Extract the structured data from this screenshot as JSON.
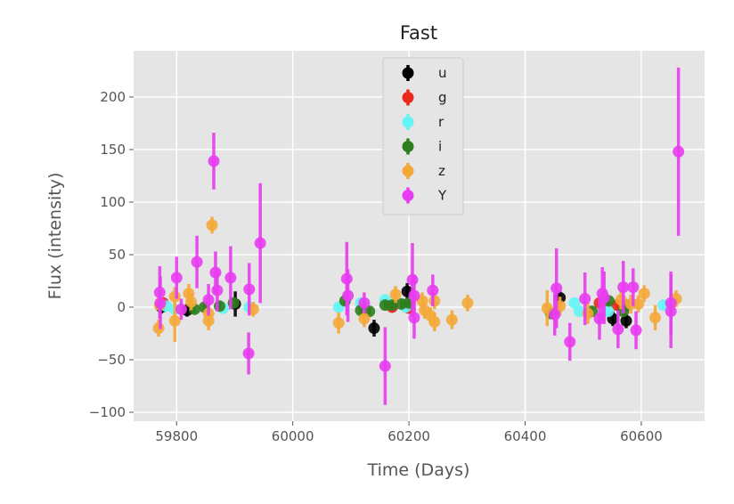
{
  "chart_data": {
    "type": "scatter",
    "title": "Fast",
    "xlabel": "Time (Days)",
    "ylabel": "Flux (intensity)",
    "xlim": [
      59726,
      60709
    ],
    "ylim": [
      -108.5,
      244
    ],
    "xticks": [
      59800,
      60000,
      60200,
      60400,
      60600
    ],
    "yticks": [
      -100,
      -50,
      0,
      50,
      100,
      150,
      200
    ],
    "grid": true,
    "error_bars": true,
    "legend_position": "top-center",
    "series": [
      {
        "name": "u",
        "color": "#000000",
        "x": [
          59774,
          59818,
          59901,
          60140,
          60197,
          60460,
          60551,
          60574
        ],
        "y": [
          0,
          -3,
          3,
          -20,
          15,
          9,
          -11,
          -13
        ],
        "err": [
          6,
          6,
          12,
          8,
          8,
          6,
          7,
          7
        ]
      },
      {
        "name": "g",
        "color": "#e8291c",
        "x": [
          59777,
          60171,
          60200,
          60528,
          60558
        ],
        "y": [
          4,
          0,
          -1,
          4,
          2
        ],
        "err": [
          5,
          5,
          5,
          5,
          5
        ]
      },
      {
        "name": "r",
        "color": "#66f5f5",
        "x": [
          59782,
          59797,
          59880,
          59925,
          60079,
          60117,
          60159,
          60194,
          60485,
          60493,
          60543,
          60638
        ],
        "y": [
          1,
          -2,
          -1,
          0,
          0,
          4,
          7,
          0,
          4,
          -4,
          -4,
          2
        ],
        "err": [
          4,
          4,
          4,
          4,
          4,
          4,
          4,
          4,
          4,
          4,
          4,
          4
        ]
      },
      {
        "name": "i",
        "color": "#2e7d1e",
        "x": [
          59831,
          59848,
          59874,
          59898,
          60090,
          60117,
          60132,
          60159,
          60171,
          60187,
          60200,
          60444,
          60515,
          60544,
          60569,
          60574
        ],
        "y": [
          -2,
          0,
          1,
          4,
          6,
          -3,
          -4,
          2,
          2,
          3,
          4,
          -6,
          -4,
          6,
          -4,
          2
        ],
        "err": [
          4,
          4,
          4,
          4,
          4,
          4,
          4,
          4,
          4,
          4,
          4,
          4,
          4,
          4,
          4,
          4
        ]
      },
      {
        "name": "z",
        "color": "#f4a83a",
        "x": [
          59769,
          59771,
          59797,
          59797,
          59825,
          59821,
          59855,
          59855,
          59861,
          59932,
          60079,
          60123,
          60177,
          60223,
          60227,
          60237,
          60244,
          60244,
          60274,
          60301,
          60438,
          60460,
          60508,
          60565,
          60582,
          60595,
          60605,
          60624,
          60660
        ],
        "y": [
          -20,
          2,
          -13,
          10,
          5,
          13,
          -13,
          -6,
          78,
          -2,
          -15,
          -11,
          12,
          6,
          -3,
          -8,
          -14,
          6,
          -12,
          4,
          -1,
          1,
          -6,
          7,
          3,
          3,
          13,
          -10,
          8
        ],
        "err": [
          8,
          8,
          20,
          9,
          8,
          9,
          9,
          9,
          8,
          7,
          10,
          8,
          8,
          8,
          8,
          8,
          9,
          8,
          9,
          8,
          17,
          9,
          10,
          9,
          9,
          8,
          8,
          12,
          8
        ]
      },
      {
        "name": "Y",
        "color": "#e83cf0",
        "x": [
          59771,
          59772,
          59800,
          59808,
          59835,
          59864,
          59867,
          59855,
          59870,
          59893,
          59924,
          59925,
          59944,
          60093,
          60095,
          60123,
          60159,
          60206,
          60209,
          60209,
          60241,
          60454,
          60451,
          60477,
          60503,
          60533,
          60536,
          60528,
          60560,
          60569,
          60586,
          60591,
          60651,
          60651,
          60664
        ],
        "y": [
          14,
          4,
          28,
          -2,
          43,
          139,
          33,
          7,
          16,
          28,
          -44,
          17,
          61,
          27,
          11,
          4,
          -56,
          26,
          11,
          -10,
          16,
          18,
          -7,
          -33,
          8,
          13,
          9,
          -11,
          -21,
          19,
          19,
          -22,
          -4,
          4,
          148
        ],
        "err": [
          25,
          25,
          20,
          10,
          25,
          27,
          20,
          15,
          20,
          30,
          20,
          25,
          57,
          35,
          25,
          10,
          37,
          35,
          20,
          20,
          15,
          38,
          20,
          18,
          25,
          25,
          25,
          20,
          18,
          25,
          18,
          18,
          35,
          30,
          80
        ]
      }
    ]
  }
}
